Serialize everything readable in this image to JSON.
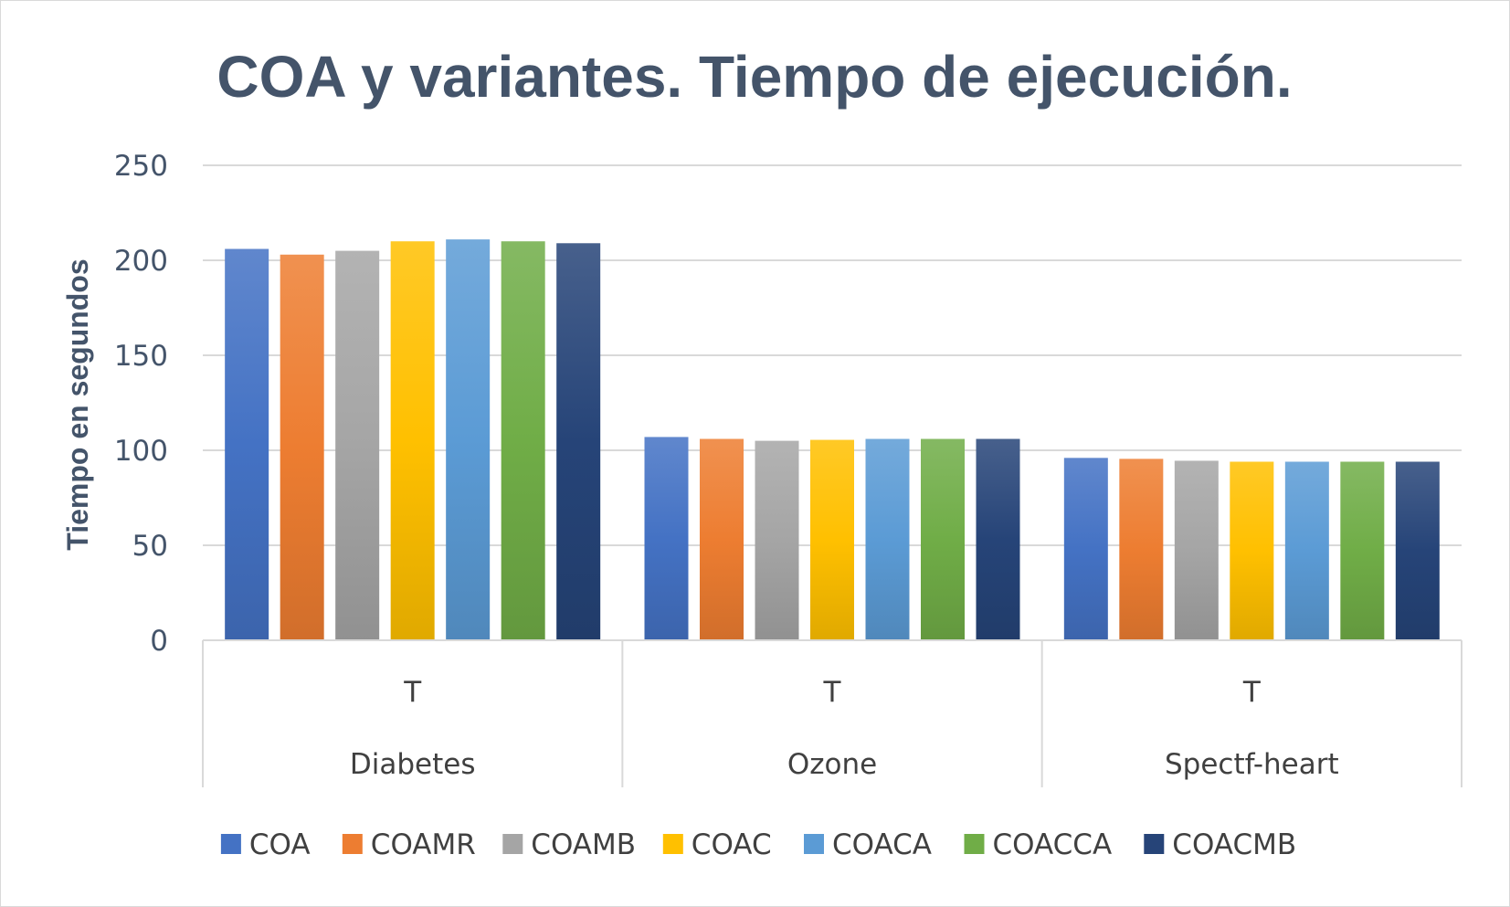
{
  "chart_data": {
    "type": "bar",
    "title": "COA y variantes. Tiempo de ejecución.",
    "ylabel": "Tiempo en segundos",
    "xlabel": "",
    "ylim": [
      0,
      250
    ],
    "yticks": [
      0,
      50,
      100,
      150,
      200,
      250
    ],
    "grid": true,
    "legend_position": "bottom",
    "categories": [
      {
        "group": "Diabetes",
        "sub": "T"
      },
      {
        "group": "Ozone",
        "sub": "T"
      },
      {
        "group": "Spectf-heart",
        "sub": "T"
      }
    ],
    "series": [
      {
        "name": "COA",
        "color": "#4472c4",
        "values": [
          206,
          107,
          96
        ]
      },
      {
        "name": "COAMR",
        "color": "#ed7d31",
        "values": [
          203,
          106,
          95.5
        ]
      },
      {
        "name": "COAMB",
        "color": "#a5a5a5",
        "values": [
          205,
          105,
          94.5
        ]
      },
      {
        "name": "COAC",
        "color": "#ffc000",
        "values": [
          210,
          105.5,
          94
        ]
      },
      {
        "name": "COACA",
        "color": "#5b9bd5",
        "values": [
          211,
          106,
          94
        ]
      },
      {
        "name": "COACCA",
        "color": "#70ad47",
        "values": [
          210,
          106,
          94
        ]
      },
      {
        "name": "COACMB",
        "color": "#264478",
        "values": [
          209,
          106,
          94
        ]
      }
    ]
  }
}
